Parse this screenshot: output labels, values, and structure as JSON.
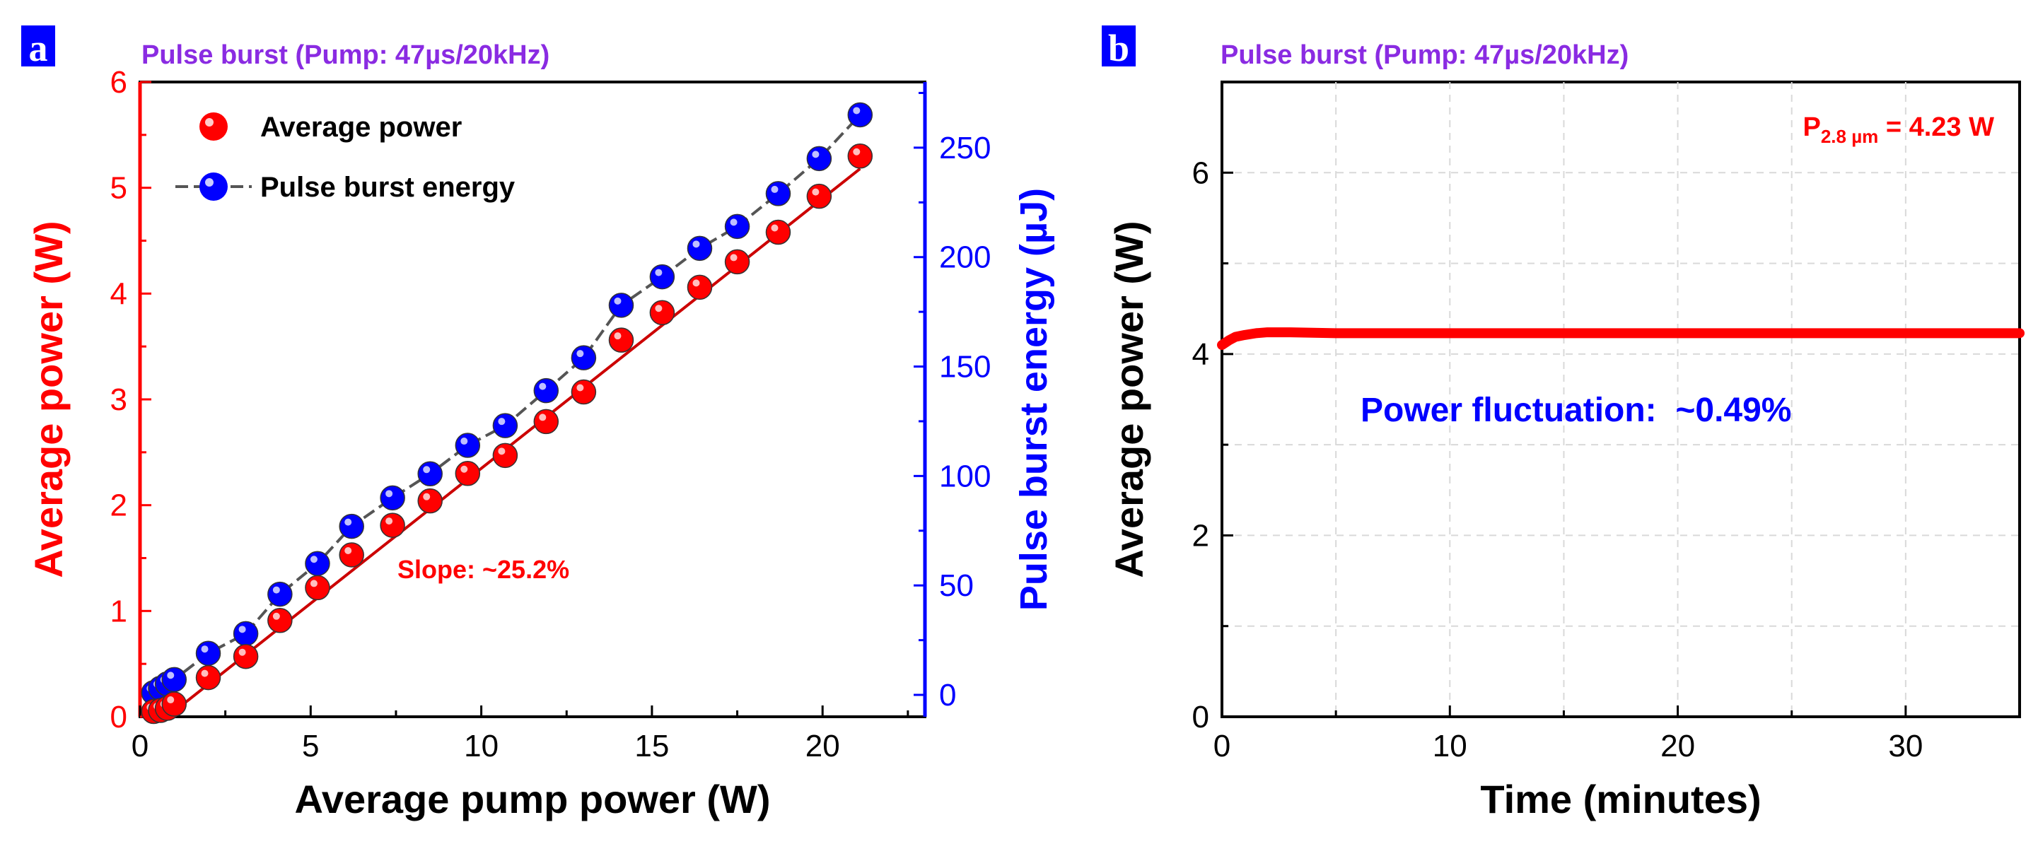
{
  "colors": {
    "red": "#ff0000",
    "blue": "#0000ff",
    "purple": "#8a2be2",
    "dark_line": "#555555",
    "panel_label_bg": "#0000ff",
    "grid": "#d9d9d9"
  },
  "chart_data": [
    {
      "type": "scatter",
      "panel_label": "a",
      "title": "Pulse burst (Pump: 47µs/20kHz)",
      "xlabel": "Average pump power (W)",
      "ylabel": "Average power (W)",
      "ylabel_right": "Pulse burst energy (µJ)",
      "xlim": [
        0,
        23
      ],
      "ylim": [
        0,
        6
      ],
      "ylim_right": [
        -10,
        280
      ],
      "x_ticks": [
        0,
        5,
        10,
        15,
        20
      ],
      "y_ticks": [
        0,
        1,
        2,
        3,
        4,
        5,
        6
      ],
      "y_ticks_right": [
        0,
        50,
        100,
        150,
        200,
        250
      ],
      "legend": [
        "Average power",
        "Pulse burst energy"
      ],
      "annotation": "Slope: ~25.2%",
      "series": [
        {
          "name": "Average power",
          "axis": "left",
          "color": "#ff0000",
          "x": [
            0.4,
            0.6,
            0.8,
            1.0,
            2.0,
            3.1,
            4.1,
            5.2,
            6.2,
            7.4,
            8.5,
            9.6,
            10.7,
            11.9,
            13.0,
            14.1,
            15.3,
            16.4,
            17.5,
            18.7,
            19.9,
            21.1
          ],
          "y": [
            0.05,
            0.06,
            0.08,
            0.12,
            0.37,
            0.57,
            0.91,
            1.22,
            1.53,
            1.81,
            2.04,
            2.3,
            2.47,
            2.79,
            3.07,
            3.56,
            3.82,
            4.06,
            4.3,
            4.58,
            4.92,
            5.3
          ]
        },
        {
          "name": "Pulse burst energy",
          "axis": "right",
          "color": "#0000ff",
          "x": [
            0.4,
            0.6,
            0.8,
            1.0,
            2.0,
            3.1,
            4.1,
            5.2,
            6.2,
            7.4,
            8.5,
            9.6,
            10.7,
            11.9,
            13.0,
            14.1,
            15.3,
            16.4,
            17.5,
            18.7,
            19.9,
            21.1
          ],
          "y": [
            1,
            3,
            5,
            7,
            19,
            28,
            46,
            60,
            77,
            90,
            101,
            114,
            123,
            139,
            154,
            178,
            191,
            204,
            214,
            229,
            245,
            265
          ]
        }
      ],
      "fit_line": {
        "x": [
          0.8,
          21.1
        ],
        "y": [
          0.0,
          5.18
        ]
      }
    },
    {
      "type": "line",
      "panel_label": "b",
      "title": "Pulse burst (Pump: 47µs/20kHz)",
      "xlabel": "Time (minutes)",
      "ylabel": "Average power (W)",
      "xlim": [
        0,
        35
      ],
      "ylim": [
        0,
        7
      ],
      "x_ticks": [
        0,
        10,
        20,
        30
      ],
      "y_ticks": [
        0,
        2,
        4,
        6
      ],
      "grid": true,
      "annotation_power_prefix": "P",
      "annotation_power_sub": "2.8 µm",
      "annotation_power_value": " = 4.23 W",
      "annotation_fluctuation": "Power fluctuation:  ~0.49%",
      "series": [
        {
          "name": "Average power",
          "color": "#ff0000",
          "x": [
            0,
            0.3,
            0.6,
            1.0,
            1.5,
            2.0,
            3.0,
            5.0,
            10,
            15,
            20,
            25,
            30,
            35
          ],
          "y": [
            4.1,
            4.15,
            4.19,
            4.21,
            4.23,
            4.24,
            4.24,
            4.23,
            4.23,
            4.23,
            4.23,
            4.23,
            4.23,
            4.23
          ]
        }
      ]
    }
  ]
}
